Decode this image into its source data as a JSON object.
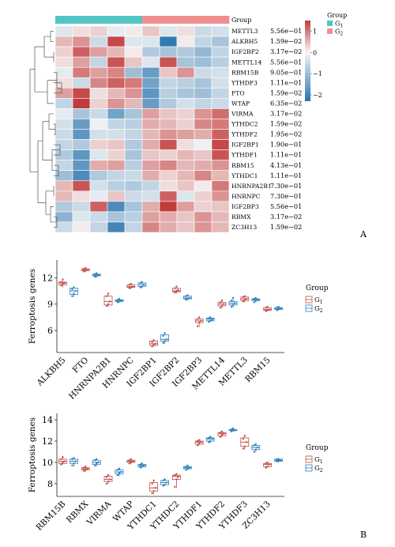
{
  "panel_labels": {
    "a": "A",
    "b": "B"
  },
  "heatmap": {
    "legend": {
      "title": "Group",
      "g1": "G",
      "g1_sub": "1",
      "g2": "G",
      "g2_sub": "2"
    },
    "colors": {
      "g1": "#53c5c4",
      "g2": "#ef8f8f",
      "high": "#c23b3b",
      "mid": "#f7f7f7",
      "low": "#2a74ae"
    },
    "scale": {
      "ticks": [
        1,
        0,
        -1,
        -2
      ],
      "tick_labels": [
        "1",
        "0",
        "−1",
        "−2"
      ],
      "min": -2.3,
      "max": 1.5
    }
  },
  "chart_data": [
    {
      "type": "heatmap",
      "annotation_label": "Group",
      "columns": [
        "G1",
        "G1",
        "G1",
        "G1",
        "G1",
        "G2",
        "G2",
        "G2",
        "G2",
        "G2"
      ],
      "rows": [
        {
          "gene": "METTL3",
          "p": "5.56e−01",
          "values": [
            -0.3,
            0.2,
            0.3,
            -0.2,
            0.1,
            0.4,
            -0.3,
            0.2,
            -0.5,
            -0.4
          ]
        },
        {
          "gene": "ALKBH5",
          "p": "1.59e−02",
          "values": [
            0.5,
            0.8,
            -0.5,
            1.4,
            -0.3,
            -0.3,
            -2.2,
            0.1,
            -0.6,
            -0.9
          ]
        },
        {
          "gene": "IGF2BP2",
          "p": "3.17e−02",
          "values": [
            0.3,
            1.2,
            0.7,
            0.5,
            0.1,
            -0.8,
            -0.9,
            -0.8,
            -1.1,
            -0.6
          ]
        },
        {
          "gene": "METTL14",
          "p": "5.56e−01",
          "values": [
            0.2,
            0.7,
            -0.6,
            1.3,
            0.4,
            -0.3,
            1.3,
            -0.9,
            -1.0,
            -0.7
          ]
        },
        {
          "gene": "RBM15B",
          "p": "9.05e−01",
          "values": [
            -0.2,
            1.0,
            0.7,
            0.9,
            -1.0,
            -1.6,
            0.4,
            0.8,
            -0.5,
            -0.4
          ]
        },
        {
          "gene": "YTHDF3",
          "p": "1.11e−01",
          "values": [
            0.2,
            -0.5,
            0.9,
            1.2,
            1.0,
            -1.5,
            -0.6,
            -0.7,
            -0.9,
            -0.4
          ]
        },
        {
          "gene": "FTO",
          "p": "1.59e−02",
          "values": [
            0.7,
            1.4,
            0.2,
            0.5,
            0.8,
            -1.7,
            -0.7,
            -0.9,
            -1.0,
            -0.6
          ]
        },
        {
          "gene": "WTAP",
          "p": "6.35e−02",
          "values": [
            -0.6,
            1.6,
            0.3,
            0.8,
            0.5,
            -1.6,
            -0.8,
            -0.4,
            -0.6,
            -0.5
          ]
        },
        {
          "gene": "VIRMA",
          "p": "3.17e−02",
          "values": [
            -0.2,
            -0.9,
            -0.5,
            -1.5,
            -0.9,
            0.7,
            0.4,
            0.3,
            0.8,
            1.1
          ]
        },
        {
          "gene": "YTHDC2",
          "p": "1.59e−02",
          "values": [
            -0.4,
            -1.6,
            -0.1,
            -0.6,
            -0.7,
            0.6,
            0.5,
            0.3,
            0.9,
            1.0
          ]
        },
        {
          "gene": "YTHDF2",
          "p": "1.95e−02",
          "values": [
            -0.5,
            -1.7,
            -0.4,
            -0.4,
            -0.6,
            0.5,
            0.8,
            0.7,
            0.6,
            1.2
          ]
        },
        {
          "gene": "IGF2BP1",
          "p": "1.90e−01",
          "values": [
            -0.6,
            -0.8,
            0.3,
            0.4,
            -0.8,
            0.6,
            1.3,
            0.2,
            -0.1,
            1.4
          ]
        },
        {
          "gene": "YTHDF1",
          "p": "1.11e−01",
          "values": [
            -0.8,
            -1.7,
            -0.3,
            0.3,
            -0.9,
            0.4,
            0.3,
            0.5,
            0.4,
            1.3
          ]
        },
        {
          "gene": "RBM15",
          "p": "4.13e−01",
          "values": [
            -0.6,
            -1.7,
            0.6,
            0.7,
            -0.7,
            0.7,
            0.9,
            0.5,
            0.6,
            0.8
          ]
        },
        {
          "gene": "YTHDC1",
          "p": "1.11e−01",
          "values": [
            -1.0,
            -1.9,
            -0.8,
            -0.6,
            -0.5,
            0.6,
            0.3,
            0.5,
            0.9,
            0.5
          ]
        },
        {
          "gene": "HNRNPA2B1",
          "p": "7.30e−01",
          "values": [
            0.5,
            1.3,
            -0.4,
            -0.7,
            -0.8,
            -0.6,
            0.2,
            0.4,
            0.1,
            1.0
          ]
        },
        {
          "gene": "HNRNPC",
          "p": "7.30e−01",
          "values": [
            0.5,
            0.2,
            -0.2,
            0.4,
            -0.5,
            -0.4,
            1.2,
            -0.3,
            0.3,
            0.8
          ]
        },
        {
          "gene": "IGF2BP3",
          "p": "5.56e−01",
          "values": [
            -0.8,
            -0.5,
            1.2,
            -1.9,
            -0.9,
            0.6,
            1.5,
            0.7,
            0.3,
            0.4
          ]
        },
        {
          "gene": "RBMX",
          "p": "3.17e−02",
          "values": [
            -1.2,
            -0.3,
            -0.5,
            -0.9,
            -0.7,
            0.7,
            0.6,
            0.4,
            0.8,
            0.5
          ]
        },
        {
          "gene": "ZC3H13",
          "p": "1.59e−02",
          "values": [
            -0.5,
            0.1,
            -0.6,
            -2.0,
            -0.6,
            0.9,
            0.6,
            0.4,
            0.8,
            0.5
          ]
        }
      ]
    },
    {
      "type": "box",
      "ylabel": "Ferroptosis genes",
      "ylim": [
        3.5,
        14
      ],
      "yticks": [
        6,
        9,
        12
      ],
      "legend": {
        "title": "Group",
        "position": "right"
      },
      "series": [
        {
          "name": "G1",
          "color": "#c0504d"
        },
        {
          "name": "G2",
          "color": "#2e80b8"
        }
      ],
      "categories": [
        "ALKBH5",
        "FTO",
        "HNRNPA2B1",
        "HNRNPC",
        "IGF2BP1",
        "IGF2BP2",
        "IGF2BP3",
        "METTL14",
        "METTL3",
        "RBM15"
      ],
      "boxes": [
        [
          {
            "min": 10.9,
            "q1": 11.2,
            "median": 11.4,
            "q3": 11.5,
            "max": 11.9,
            "points": [
              11.1,
              11.3,
              11.4,
              11.5,
              11.8
            ]
          },
          {
            "min": 9.8,
            "q1": 10.1,
            "median": 10.5,
            "q3": 10.8,
            "max": 11.0,
            "points": [
              9.9,
              10.2,
              10.5,
              10.7,
              10.9
            ]
          }
        ],
        [
          {
            "min": 12.6,
            "q1": 12.8,
            "median": 12.9,
            "q3": 13.0,
            "max": 13.2,
            "points": [
              12.7,
              12.8,
              12.9,
              13.0,
              13.1
            ]
          },
          {
            "min": 12.0,
            "q1": 12.2,
            "median": 12.3,
            "q3": 12.4,
            "max": 12.5,
            "points": [
              12.1,
              12.2,
              12.3,
              12.4,
              12.5
            ]
          }
        ],
        [
          {
            "min": 8.7,
            "q1": 8.9,
            "median": 9.3,
            "q3": 9.9,
            "max": 10.3,
            "points": [
              8.8,
              9.0,
              9.3,
              9.9,
              10.2
            ]
          },
          {
            "min": 9.2,
            "q1": 9.3,
            "median": 9.4,
            "q3": 9.5,
            "max": 9.6,
            "points": [
              9.2,
              9.3,
              9.4,
              9.5,
              9.6
            ]
          }
        ],
        [
          {
            "min": 10.7,
            "q1": 10.9,
            "median": 11.0,
            "q3": 11.2,
            "max": 11.4,
            "points": [
              10.8,
              10.9,
              11.0,
              11.2,
              11.3
            ]
          },
          {
            "min": 10.8,
            "q1": 11.0,
            "median": 11.2,
            "q3": 11.4,
            "max": 11.6,
            "points": [
              10.9,
              11.0,
              11.2,
              11.4,
              11.5
            ]
          }
        ],
        [
          {
            "min": 4.2,
            "q1": 4.3,
            "median": 4.5,
            "q3": 4.8,
            "max": 5.0,
            "points": [
              4.2,
              4.4,
              4.5,
              4.7,
              4.9
            ]
          },
          {
            "min": 4.5,
            "q1": 4.8,
            "median": 5.0,
            "q3": 5.5,
            "max": 5.8,
            "points": [
              4.6,
              4.8,
              5.0,
              5.4,
              5.7
            ]
          }
        ],
        [
          {
            "min": 10.2,
            "q1": 10.4,
            "median": 10.5,
            "q3": 10.8,
            "max": 11.1,
            "points": [
              10.3,
              10.5,
              10.6,
              10.8,
              11.0
            ]
          },
          {
            "min": 9.4,
            "q1": 9.6,
            "median": 9.7,
            "q3": 9.9,
            "max": 10.0,
            "points": [
              9.5,
              9.6,
              9.7,
              9.9,
              10.0
            ]
          }
        ],
        [
          {
            "min": 6.4,
            "q1": 6.9,
            "median": 7.1,
            "q3": 7.3,
            "max": 7.6,
            "points": [
              6.5,
              6.9,
              7.1,
              7.3,
              7.5
            ]
          },
          {
            "min": 7.0,
            "q1": 7.1,
            "median": 7.3,
            "q3": 7.4,
            "max": 7.5,
            "points": [
              7.0,
              7.1,
              7.2,
              7.4,
              7.5
            ]
          }
        ],
        [
          {
            "min": 8.5,
            "q1": 8.8,
            "median": 9.0,
            "q3": 9.2,
            "max": 9.5,
            "points": [
              8.6,
              8.8,
              9.0,
              9.2,
              9.4
            ]
          },
          {
            "min": 8.6,
            "q1": 8.9,
            "median": 9.1,
            "q3": 9.3,
            "max": 9.8,
            "points": [
              8.7,
              8.9,
              9.1,
              9.4,
              9.7
            ]
          }
        ],
        [
          {
            "min": 9.2,
            "q1": 9.4,
            "median": 9.6,
            "q3": 9.8,
            "max": 10.0,
            "points": [
              9.3,
              9.5,
              9.6,
              9.8,
              9.9
            ]
          },
          {
            "min": 9.2,
            "q1": 9.4,
            "median": 9.5,
            "q3": 9.6,
            "max": 9.7,
            "points": [
              9.2,
              9.4,
              9.5,
              9.6,
              9.7
            ]
          }
        ],
        [
          {
            "min": 8.2,
            "q1": 8.3,
            "median": 8.4,
            "q3": 8.6,
            "max": 8.8,
            "points": [
              8.2,
              8.3,
              8.4,
              8.6,
              8.7
            ]
          },
          {
            "min": 8.3,
            "q1": 8.4,
            "median": 8.5,
            "q3": 8.6,
            "max": 8.8,
            "points": [
              8.3,
              8.4,
              8.5,
              8.6,
              8.7
            ]
          }
        ]
      ]
    },
    {
      "type": "box",
      "ylabel": "Ferroptosis genes",
      "ylim": [
        6.8,
        14.6
      ],
      "yticks": [
        8,
        10,
        12,
        14
      ],
      "legend": {
        "title": "Group",
        "position": "right"
      },
      "series": [
        {
          "name": "G1",
          "color": "#c0504d"
        },
        {
          "name": "G2",
          "color": "#2e80b8"
        }
      ],
      "categories": [
        "RBM15B",
        "RBMX",
        "VIRMA",
        "WTAP",
        "YTHDC1",
        "YTHDC2",
        "YTHDF1",
        "YTHDF2",
        "YTHDF3",
        "ZC3H13"
      ],
      "boxes": [
        [
          {
            "min": 9.8,
            "q1": 9.9,
            "median": 10.1,
            "q3": 10.3,
            "max": 10.6,
            "points": [
              9.8,
              10.0,
              10.1,
              10.3,
              10.5
            ]
          },
          {
            "min": 9.6,
            "q1": 9.9,
            "median": 10.1,
            "q3": 10.3,
            "max": 10.5,
            "points": [
              9.7,
              9.9,
              10.1,
              10.3,
              10.4
            ]
          }
        ],
        [
          {
            "min": 9.1,
            "q1": 9.3,
            "median": 9.4,
            "q3": 9.5,
            "max": 9.7,
            "points": [
              9.2,
              9.3,
              9.4,
              9.5,
              9.6
            ]
          },
          {
            "min": 9.6,
            "q1": 9.8,
            "median": 10.0,
            "q3": 10.2,
            "max": 10.4,
            "points": [
              9.7,
              9.9,
              10.0,
              10.2,
              10.3
            ]
          }
        ],
        [
          {
            "min": 8.0,
            "q1": 8.2,
            "median": 8.4,
            "q3": 8.7,
            "max": 8.9,
            "points": [
              8.0,
              8.2,
              8.4,
              8.6,
              8.8
            ]
          },
          {
            "min": 8.7,
            "q1": 8.9,
            "median": 9.1,
            "q3": 9.3,
            "max": 9.5,
            "points": [
              8.8,
              9.0,
              9.1,
              9.3,
              9.4
            ]
          }
        ],
        [
          {
            "min": 9.8,
            "q1": 10.0,
            "median": 10.1,
            "q3": 10.2,
            "max": 10.4,
            "points": [
              9.9,
              10.0,
              10.1,
              10.2,
              10.3
            ]
          },
          {
            "min": 9.5,
            "q1": 9.6,
            "median": 9.7,
            "q3": 9.8,
            "max": 10.0,
            "points": [
              9.5,
              9.6,
              9.7,
              9.8,
              9.9
            ]
          }
        ],
        [
          {
            "min": 7.0,
            "q1": 7.3,
            "median": 7.6,
            "q3": 8.1,
            "max": 8.4,
            "points": [
              7.1,
              7.3,
              7.6,
              8.0,
              8.3
            ]
          },
          {
            "min": 7.8,
            "q1": 7.9,
            "median": 8.1,
            "q3": 8.3,
            "max": 8.4,
            "points": [
              7.8,
              7.9,
              8.1,
              8.3,
              8.4
            ]
          }
        ],
        [
          {
            "min": 7.6,
            "q1": 8.4,
            "median": 8.7,
            "q3": 8.8,
            "max": 9.0,
            "points": [
              7.7,
              8.4,
              8.6,
              8.8,
              8.9
            ]
          },
          {
            "min": 9.3,
            "q1": 9.4,
            "median": 9.5,
            "q3": 9.6,
            "max": 9.7,
            "points": [
              9.3,
              9.4,
              9.5,
              9.6,
              9.7
            ]
          }
        ],
        [
          {
            "min": 11.6,
            "q1": 11.7,
            "median": 11.9,
            "q3": 12.0,
            "max": 12.1,
            "points": [
              11.6,
              11.8,
              11.9,
              12.0,
              12.1
            ]
          },
          {
            "min": 11.8,
            "q1": 12.0,
            "median": 12.2,
            "q3": 12.3,
            "max": 12.5,
            "points": [
              11.9,
              12.0,
              12.2,
              12.3,
              12.4
            ]
          }
        ],
        [
          {
            "min": 12.4,
            "q1": 12.5,
            "median": 12.7,
            "q3": 12.8,
            "max": 13.0,
            "points": [
              12.4,
              12.6,
              12.7,
              12.8,
              12.9
            ]
          },
          {
            "min": 12.9,
            "q1": 13.0,
            "median": 13.0,
            "q3": 13.1,
            "max": 13.2,
            "points": [
              12.9,
              13.0,
              13.0,
              13.1,
              13.2
            ]
          }
        ],
        [
          {
            "min": 11.2,
            "q1": 11.5,
            "median": 11.9,
            "q3": 12.3,
            "max": 12.6,
            "points": [
              11.3,
              11.5,
              11.9,
              12.2,
              12.5
            ]
          },
          {
            "min": 11.0,
            "q1": 11.2,
            "median": 11.4,
            "q3": 11.6,
            "max": 11.8,
            "points": [
              11.0,
              11.2,
              11.4,
              11.6,
              11.7
            ]
          }
        ],
        [
          {
            "min": 9.5,
            "q1": 9.6,
            "median": 9.8,
            "q3": 9.9,
            "max": 10.0,
            "points": [
              9.5,
              9.6,
              9.8,
              9.9,
              10.0
            ]
          },
          {
            "min": 10.1,
            "q1": 10.1,
            "median": 10.2,
            "q3": 10.3,
            "max": 10.3,
            "points": [
              10.1,
              10.1,
              10.2,
              10.3,
              10.3
            ]
          }
        ]
      ]
    }
  ]
}
